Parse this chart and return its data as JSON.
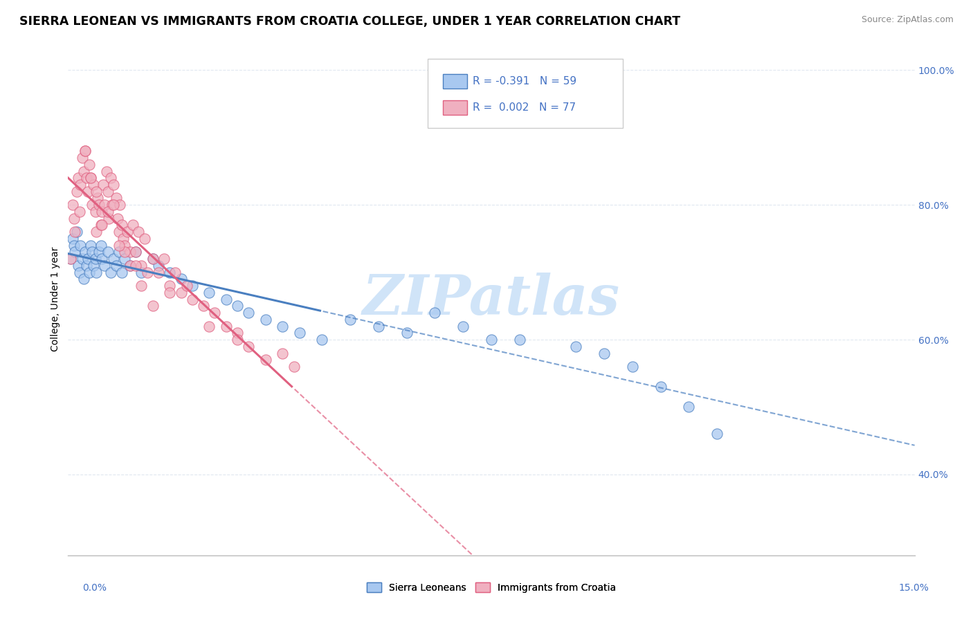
{
  "title": "SIERRA LEONEAN VS IMMIGRANTS FROM CROATIA COLLEGE, UNDER 1 YEAR CORRELATION CHART",
  "source_text": "Source: ZipAtlas.com",
  "ylabel": "College, Under 1 year",
  "xmin": 0.0,
  "xmax": 15.0,
  "ymin": 28.0,
  "ymax": 104.0,
  "ytick_labels": [
    "40.0%",
    "60.0%",
    "80.0%",
    "100.0%"
  ],
  "ytick_values": [
    40.0,
    60.0,
    80.0,
    100.0
  ],
  "color_blue": "#a8c8f0",
  "color_pink": "#f0b0c0",
  "color_blue_line": "#4a7fc0",
  "color_pink_line": "#e06080",
  "color_tick": "#4472c4",
  "watermark_color": "#d0e4f8",
  "background_color": "#ffffff",
  "grid_color": "#e0e8f0",
  "blue_scatter_x": [
    0.05,
    0.08,
    0.1,
    0.12,
    0.15,
    0.18,
    0.2,
    0.22,
    0.25,
    0.28,
    0.3,
    0.32,
    0.35,
    0.38,
    0.4,
    0.42,
    0.45,
    0.48,
    0.5,
    0.55,
    0.58,
    0.6,
    0.65,
    0.7,
    0.75,
    0.8,
    0.85,
    0.9,
    0.95,
    1.0,
    1.1,
    1.2,
    1.3,
    1.5,
    1.6,
    1.8,
    2.0,
    2.2,
    2.5,
    2.8,
    3.0,
    3.2,
    3.5,
    3.8,
    4.1,
    4.5,
    5.0,
    5.5,
    6.0,
    6.5,
    7.0,
    7.5,
    8.0,
    9.0,
    9.5,
    10.0,
    10.5,
    11.0,
    11.5
  ],
  "blue_scatter_y": [
    72,
    75,
    74,
    73,
    76,
    71,
    70,
    74,
    72,
    69,
    73,
    71,
    72,
    70,
    74,
    73,
    71,
    72,
    70,
    73,
    74,
    72,
    71,
    73,
    70,
    72,
    71,
    73,
    70,
    72,
    71,
    73,
    70,
    72,
    71,
    70,
    69,
    68,
    67,
    66,
    65,
    64,
    63,
    62,
    61,
    60,
    63,
    62,
    61,
    64,
    62,
    60,
    60,
    59,
    58,
    56,
    53,
    50,
    46
  ],
  "pink_scatter_x": [
    0.05,
    0.08,
    0.1,
    0.12,
    0.15,
    0.18,
    0.2,
    0.22,
    0.25,
    0.28,
    0.3,
    0.32,
    0.35,
    0.38,
    0.4,
    0.42,
    0.45,
    0.48,
    0.5,
    0.52,
    0.55,
    0.58,
    0.6,
    0.62,
    0.65,
    0.68,
    0.7,
    0.72,
    0.75,
    0.78,
    0.8,
    0.85,
    0.88,
    0.9,
    0.92,
    0.95,
    0.98,
    1.0,
    1.05,
    1.1,
    1.15,
    1.2,
    1.25,
    1.3,
    1.35,
    1.4,
    1.5,
    1.6,
    1.7,
    1.8,
    1.9,
    2.0,
    2.1,
    2.2,
    2.4,
    2.6,
    2.8,
    3.0,
    3.2,
    3.5,
    3.8,
    4.0,
    1.0,
    0.5,
    0.3,
    0.7,
    0.9,
    1.1,
    1.3,
    0.4,
    0.6,
    0.8,
    1.2,
    1.5,
    1.8,
    2.5,
    3.0
  ],
  "pink_scatter_y": [
    72,
    80,
    78,
    76,
    82,
    84,
    79,
    83,
    87,
    85,
    88,
    84,
    82,
    86,
    84,
    80,
    83,
    79,
    76,
    81,
    80,
    77,
    79,
    83,
    80,
    85,
    82,
    78,
    84,
    80,
    83,
    81,
    78,
    76,
    80,
    77,
    75,
    74,
    76,
    73,
    77,
    73,
    76,
    71,
    75,
    70,
    72,
    70,
    72,
    68,
    70,
    67,
    68,
    66,
    65,
    64,
    62,
    61,
    59,
    57,
    58,
    56,
    73,
    82,
    88,
    79,
    74,
    71,
    68,
    84,
    77,
    80,
    71,
    65,
    67,
    62,
    60
  ],
  "title_fontsize": 12.5,
  "axis_label_fontsize": 10,
  "tick_fontsize": 10,
  "source_fontsize": 9,
  "legend_fontsize": 11
}
